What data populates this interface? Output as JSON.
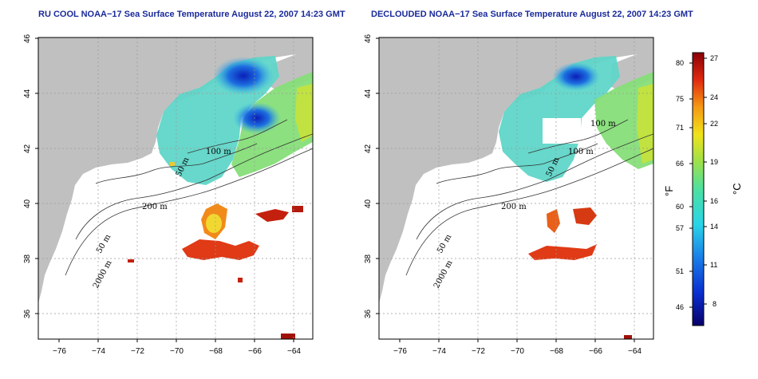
{
  "titles": {
    "left": "RU COOL NOAA−17 Sea Surface Temperature August 22, 2007 14:23 GMT",
    "right": "DECLOUDED NOAA−17 Sea Surface Temperature August 22, 2007 14:23 GMT"
  },
  "axes": {
    "lon_ticks": [
      "−76",
      "−74",
      "−72",
      "−70",
      "−68",
      "−66",
      "−64"
    ],
    "lat_ticks": [
      "46",
      "44",
      "42",
      "40",
      "38",
      "36"
    ],
    "lon_range": [
      -77,
      -63
    ],
    "lat_range": [
      35,
      46
    ]
  },
  "contour_labels": {
    "left": [
      "50 m",
      "100 m",
      "200 m",
      "50 m",
      "2000 m"
    ],
    "right": [
      "50 m",
      "100 m",
      "100 m",
      "200 m",
      "50 m",
      "2000 m"
    ]
  },
  "colorbar": {
    "fahrenheit_ticks": [
      "80",
      "75",
      "71",
      "66",
      "60",
      "57",
      "51",
      "46"
    ],
    "celsius_ticks": [
      "27",
      "24",
      "22",
      "19",
      "16",
      "14",
      "11",
      "8"
    ],
    "fahrenheit_unit": "°F",
    "celsius_unit": "°C"
  },
  "colors": {
    "land": "#c0c0c0",
    "ocean_nodata": "#ffffff",
    "title": "#1a2a9a",
    "grid": "#9a9a9a"
  }
}
